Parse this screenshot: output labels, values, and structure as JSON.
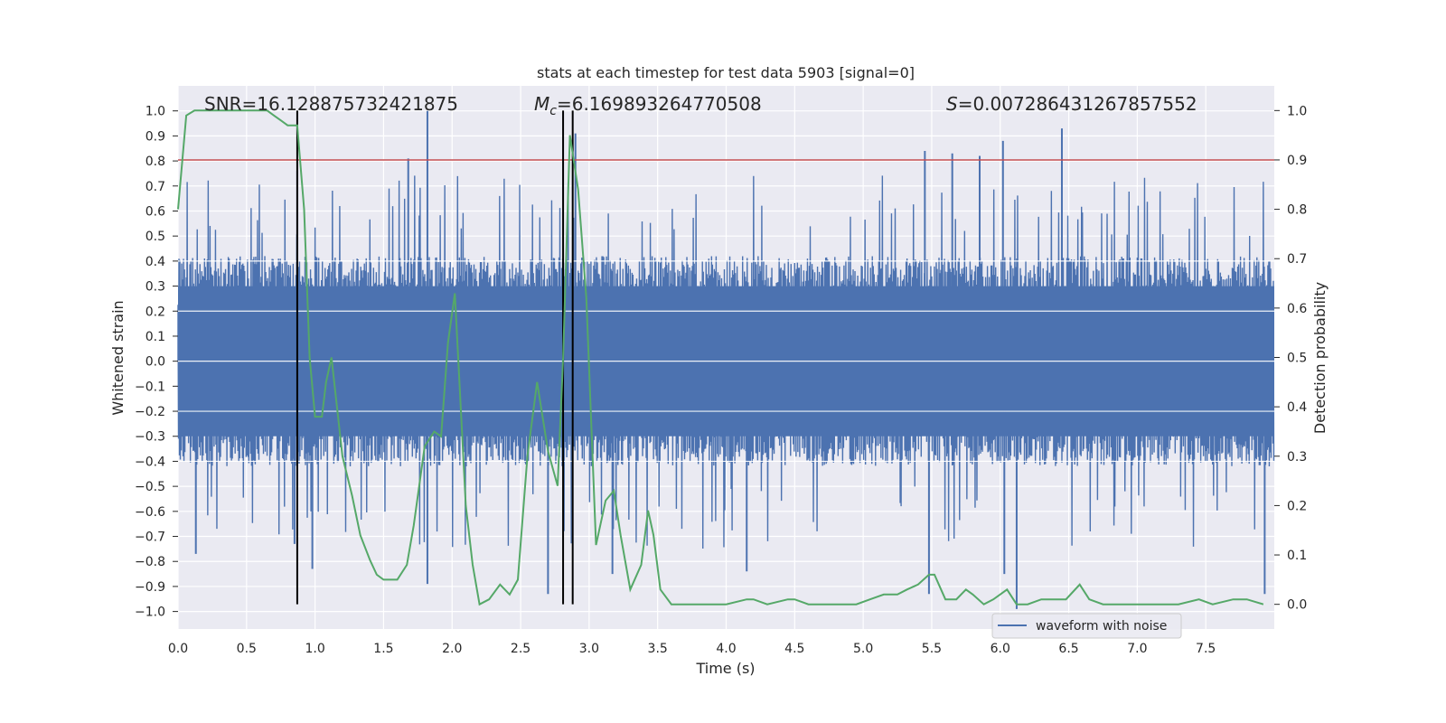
{
  "chart_data": {
    "type": "line",
    "title": "stats at each timestep for test data 5903 [signal=0]",
    "xlabel": "Time (s)",
    "ylabel": "Whitened strain",
    "y2label": "Detection probability",
    "xlim": [
      0,
      8
    ],
    "ylim": [
      -1.07,
      1.1
    ],
    "y2lim": [
      -0.05,
      1.05
    ],
    "x_ticks": [
      "0.0",
      "0.5",
      "1.0",
      "1.5",
      "2.0",
      "2.5",
      "3.0",
      "3.5",
      "4.0",
      "4.5",
      "5.0",
      "5.5",
      "6.0",
      "6.5",
      "7.0",
      "7.5"
    ],
    "y_ticks": [
      "-1.0",
      "-0.9",
      "-0.8",
      "-0.7",
      "-0.6",
      "-0.5",
      "-0.4",
      "-0.3",
      "-0.2",
      "-0.1",
      "0.0",
      "0.1",
      "0.2",
      "0.3",
      "0.4",
      "0.5",
      "0.6",
      "0.7",
      "0.8",
      "0.9",
      "1.0"
    ],
    "y2_ticks": [
      "0.0",
      "0.1",
      "0.2",
      "0.3",
      "0.4",
      "0.5",
      "0.6",
      "0.7",
      "0.8",
      "0.9",
      "1.0"
    ],
    "grid": true,
    "legend_position": "bottom-right",
    "annotations": {
      "snr": "SNR=16.128875732421875",
      "mc_symbol": "M",
      "mc_sub": "c",
      "mc_value": "=6.169893264770508",
      "s_symbol": "S",
      "s_value": "=0.0072864312678575​52"
    },
    "threshold": {
      "y2": 0.9,
      "color": "#c44e52"
    },
    "vertical_markers": {
      "x": [
        0.87,
        2.81,
        2.88
      ],
      "color": "#000000"
    },
    "series": [
      {
        "name": "waveform with noise",
        "axis": "left",
        "color": "#4c72b0",
        "description": "dense noisy whitened strain, roughly symmetric within about +/-0.7 with spikes up to 1.0",
        "noise_amplitude": 0.42,
        "peaks": [
          {
            "x": 1.82,
            "y": 1.0
          },
          {
            "x": 6.45,
            "y": 0.93
          },
          {
            "x": 6.02,
            "y": 0.88
          },
          {
            "x": 5.45,
            "y": 0.84
          },
          {
            "x": 5.65,
            "y": 0.83
          },
          {
            "x": 5.85,
            "y": 0.82
          },
          {
            "x": 0.87,
            "y": 0.76
          },
          {
            "x": 1.68,
            "y": 0.81
          },
          {
            "x": 2.9,
            "y": 0.91
          },
          {
            "x": 1.82,
            "y": -0.89
          },
          {
            "x": 6.12,
            "y": -0.99
          },
          {
            "x": 7.93,
            "y": -0.93
          },
          {
            "x": 5.48,
            "y": -0.93
          },
          {
            "x": 2.7,
            "y": -0.93
          },
          {
            "x": 3.17,
            "y": -0.85
          },
          {
            "x": 4.15,
            "y": -0.84
          },
          {
            "x": 0.98,
            "y": -0.83
          },
          {
            "x": 6.03,
            "y": -0.85
          },
          {
            "x": 0.13,
            "y": -0.77
          },
          {
            "x": 0.85,
            "y": -0.73
          }
        ]
      },
      {
        "name": "",
        "axis": "right",
        "color": "#55a868",
        "x": [
          0.0,
          0.06,
          0.12,
          0.2,
          0.3,
          0.4,
          0.5,
          0.6,
          0.65,
          0.7,
          0.75,
          0.8,
          0.87,
          0.92,
          0.96,
          1.0,
          1.05,
          1.08,
          1.12,
          1.2,
          1.27,
          1.33,
          1.4,
          1.45,
          1.5,
          1.55,
          1.6,
          1.67,
          1.72,
          1.8,
          1.87,
          1.92,
          1.97,
          2.02,
          2.1,
          2.15,
          2.2,
          2.27,
          2.35,
          2.42,
          2.48,
          2.55,
          2.62,
          2.7,
          2.77,
          2.81,
          2.86,
          2.92,
          2.98,
          3.05,
          3.12,
          3.18,
          3.23,
          3.3,
          3.38,
          3.43,
          3.47,
          3.52,
          3.6,
          3.8,
          4.0,
          4.15,
          4.2,
          4.3,
          4.45,
          4.5,
          4.6,
          4.75,
          4.95,
          5.05,
          5.15,
          5.25,
          5.32,
          5.4,
          5.48,
          5.52,
          5.6,
          5.68,
          5.75,
          5.8,
          5.88,
          5.95,
          6.05,
          6.12,
          6.2,
          6.3,
          6.38,
          6.48,
          6.58,
          6.65,
          6.75,
          6.9,
          7.1,
          7.3,
          7.45,
          7.55,
          7.7,
          7.8,
          7.92
        ],
        "y": [
          0.8,
          0.99,
          1.0,
          1.0,
          1.0,
          1.0,
          1.0,
          1.0,
          1.0,
          0.99,
          0.98,
          0.97,
          0.97,
          0.8,
          0.5,
          0.38,
          0.38,
          0.45,
          0.5,
          0.3,
          0.22,
          0.14,
          0.09,
          0.06,
          0.05,
          0.05,
          0.05,
          0.08,
          0.16,
          0.32,
          0.35,
          0.34,
          0.53,
          0.63,
          0.2,
          0.08,
          0.0,
          0.01,
          0.04,
          0.02,
          0.05,
          0.3,
          0.45,
          0.31,
          0.24,
          0.5,
          0.95,
          0.84,
          0.62,
          0.12,
          0.21,
          0.23,
          0.14,
          0.03,
          0.08,
          0.19,
          0.14,
          0.03,
          0.0,
          0.0,
          0.0,
          0.01,
          0.01,
          0.0,
          0.01,
          0.01,
          0.0,
          0.0,
          0.0,
          0.01,
          0.02,
          0.02,
          0.03,
          0.04,
          0.06,
          0.06,
          0.01,
          0.01,
          0.03,
          0.02,
          0.0,
          0.01,
          0.03,
          0.0,
          0.0,
          0.01,
          0.01,
          0.01,
          0.04,
          0.01,
          0.0,
          0.0,
          0.0,
          0.0,
          0.01,
          0.0,
          0.01,
          0.01,
          0.0
        ]
      }
    ]
  }
}
